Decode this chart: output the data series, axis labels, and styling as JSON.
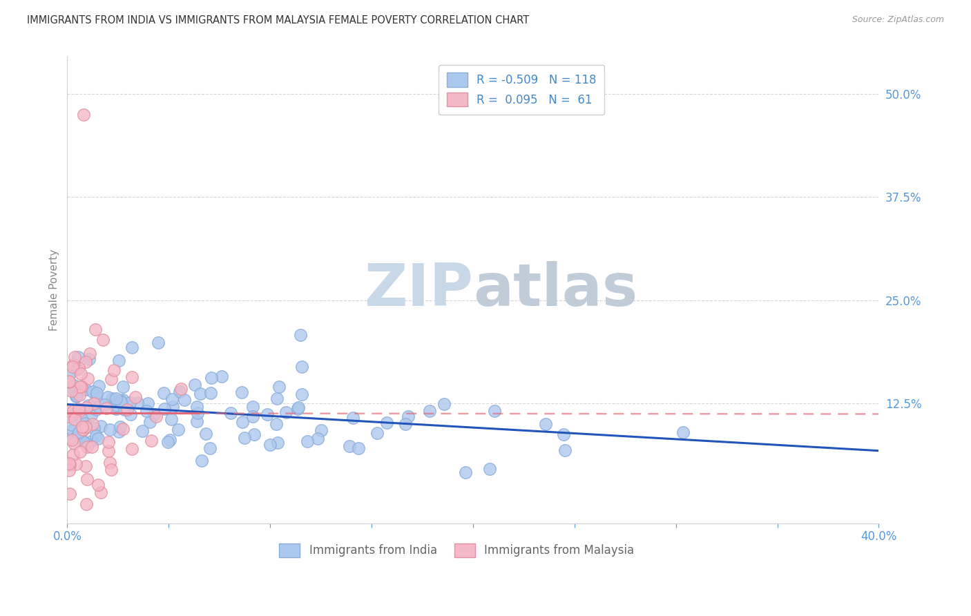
{
  "title": "IMMIGRANTS FROM INDIA VS IMMIGRANTS FROM MALAYSIA FEMALE POVERTY CORRELATION CHART",
  "source": "Source: ZipAtlas.com",
  "ylabel": "Female Poverty",
  "x_min": 0.0,
  "x_max": 0.4,
  "y_min": -0.02,
  "y_max": 0.545,
  "india_R": -0.509,
  "india_N": 118,
  "malaysia_R": 0.095,
  "malaysia_N": 61,
  "india_color": "#adc8ee",
  "india_edge_color": "#88aad8",
  "malaysia_color": "#f5b8c8",
  "malaysia_edge_color": "#e090a0",
  "india_trend_color": "#2255bb",
  "malaysia_trend_color": "#e06878",
  "grid_color": "#cccccc",
  "background_color": "#ffffff",
  "watermark_zip": "#c8d8e8",
  "watermark_atlas": "#c0ccd8",
  "legend_text_color": "#4488cc",
  "axis_label_color": "#5599dd",
  "ylabel_color": "#888888",
  "title_color": "#333333",
  "source_color": "#999999",
  "legend_edge_color": "#cccccc",
  "bottom_legend_text_color": "#666666",
  "india_seed": 42,
  "malaysia_seed": 99
}
